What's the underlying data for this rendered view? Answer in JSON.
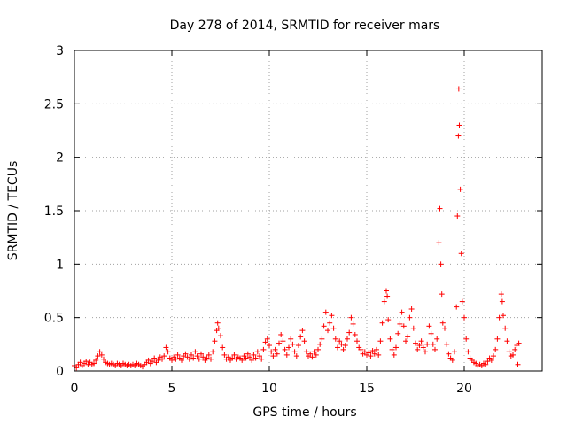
{
  "chart_data": {
    "type": "scatter",
    "title": "Day 278 of 2014, SRMTID for receiver mars",
    "xlabel": "GPS time / hours",
    "ylabel": "SRMTID / TECUs",
    "xlim": [
      0,
      24
    ],
    "ylim": [
      0,
      3
    ],
    "xticks": [
      0,
      5,
      10,
      15,
      20
    ],
    "xtick_labels": [
      "0",
      "5",
      "10",
      "15",
      "20"
    ],
    "yticks": [
      0,
      0.5,
      1,
      1.5,
      2,
      2.5,
      3
    ],
    "ytick_labels": [
      "0",
      "0.5",
      "1",
      "1.5",
      "2",
      "2.5",
      "3"
    ],
    "grid": true,
    "marker": "+",
    "color": "#ff0000",
    "series": [
      {
        "name": "SRMTID",
        "points": [
          [
            0.0,
            0.05
          ],
          [
            0.1,
            0.03
          ],
          [
            0.2,
            0.06
          ],
          [
            0.3,
            0.08
          ],
          [
            0.4,
            0.05
          ],
          [
            0.5,
            0.07
          ],
          [
            0.6,
            0.09
          ],
          [
            0.7,
            0.06
          ],
          [
            0.8,
            0.08
          ],
          [
            0.9,
            0.06
          ],
          [
            1.0,
            0.07
          ],
          [
            1.1,
            0.1
          ],
          [
            1.2,
            0.14
          ],
          [
            1.3,
            0.18
          ],
          [
            1.4,
            0.15
          ],
          [
            1.5,
            0.11
          ],
          [
            1.6,
            0.08
          ],
          [
            1.7,
            0.07
          ],
          [
            1.8,
            0.06
          ],
          [
            1.9,
            0.07
          ],
          [
            2.0,
            0.06
          ],
          [
            2.1,
            0.05
          ],
          [
            2.2,
            0.07
          ],
          [
            2.3,
            0.06
          ],
          [
            2.4,
            0.05
          ],
          [
            2.5,
            0.07
          ],
          [
            2.6,
            0.06
          ],
          [
            2.7,
            0.05
          ],
          [
            2.8,
            0.06
          ],
          [
            2.9,
            0.05
          ],
          [
            3.0,
            0.06
          ],
          [
            3.1,
            0.05
          ],
          [
            3.2,
            0.07
          ],
          [
            3.3,
            0.06
          ],
          [
            3.4,
            0.05
          ],
          [
            3.5,
            0.04
          ],
          [
            3.6,
            0.06
          ],
          [
            3.7,
            0.08
          ],
          [
            3.8,
            0.1
          ],
          [
            3.9,
            0.07
          ],
          [
            4.0,
            0.09
          ],
          [
            4.1,
            0.12
          ],
          [
            4.2,
            0.08
          ],
          [
            4.3,
            0.1
          ],
          [
            4.4,
            0.13
          ],
          [
            4.5,
            0.11
          ],
          [
            4.6,
            0.14
          ],
          [
            4.7,
            0.22
          ],
          [
            4.8,
            0.18
          ],
          [
            4.9,
            0.12
          ],
          [
            5.0,
            0.1
          ],
          [
            5.1,
            0.13
          ],
          [
            5.2,
            0.11
          ],
          [
            5.3,
            0.15
          ],
          [
            5.4,
            0.12
          ],
          [
            5.5,
            0.1
          ],
          [
            5.6,
            0.14
          ],
          [
            5.7,
            0.16
          ],
          [
            5.8,
            0.13
          ],
          [
            5.9,
            0.11
          ],
          [
            6.0,
            0.15
          ],
          [
            6.1,
            0.12
          ],
          [
            6.2,
            0.18
          ],
          [
            6.3,
            0.14
          ],
          [
            6.4,
            0.11
          ],
          [
            6.5,
            0.16
          ],
          [
            6.6,
            0.13
          ],
          [
            6.7,
            0.1
          ],
          [
            6.8,
            0.12
          ],
          [
            6.9,
            0.15
          ],
          [
            7.0,
            0.11
          ],
          [
            7.1,
            0.18
          ],
          [
            7.2,
            0.28
          ],
          [
            7.3,
            0.38
          ],
          [
            7.35,
            0.45
          ],
          [
            7.4,
            0.4
          ],
          [
            7.5,
            0.33
          ],
          [
            7.6,
            0.22
          ],
          [
            7.7,
            0.15
          ],
          [
            7.8,
            0.11
          ],
          [
            7.9,
            0.13
          ],
          [
            8.0,
            0.1
          ],
          [
            8.1,
            0.12
          ],
          [
            8.2,
            0.15
          ],
          [
            8.3,
            0.11
          ],
          [
            8.4,
            0.13
          ],
          [
            8.5,
            0.12
          ],
          [
            8.6,
            0.1
          ],
          [
            8.7,
            0.14
          ],
          [
            8.8,
            0.12
          ],
          [
            8.9,
            0.16
          ],
          [
            9.0,
            0.13
          ],
          [
            9.1,
            0.1
          ],
          [
            9.2,
            0.15
          ],
          [
            9.3,
            0.12
          ],
          [
            9.4,
            0.18
          ],
          [
            9.5,
            0.14
          ],
          [
            9.6,
            0.11
          ],
          [
            9.7,
            0.2
          ],
          [
            9.8,
            0.27
          ],
          [
            9.9,
            0.3
          ],
          [
            10.0,
            0.24
          ],
          [
            10.1,
            0.18
          ],
          [
            10.2,
            0.14
          ],
          [
            10.3,
            0.2
          ],
          [
            10.4,
            0.16
          ],
          [
            10.5,
            0.26
          ],
          [
            10.6,
            0.34
          ],
          [
            10.7,
            0.28
          ],
          [
            10.8,
            0.2
          ],
          [
            10.9,
            0.15
          ],
          [
            11.0,
            0.22
          ],
          [
            11.1,
            0.3
          ],
          [
            11.2,
            0.25
          ],
          [
            11.3,
            0.18
          ],
          [
            11.4,
            0.14
          ],
          [
            11.5,
            0.24
          ],
          [
            11.6,
            0.32
          ],
          [
            11.7,
            0.38
          ],
          [
            11.8,
            0.28
          ],
          [
            11.9,
            0.18
          ],
          [
            12.0,
            0.14
          ],
          [
            12.1,
            0.16
          ],
          [
            12.2,
            0.13
          ],
          [
            12.3,
            0.18
          ],
          [
            12.4,
            0.15
          ],
          [
            12.5,
            0.2
          ],
          [
            12.6,
            0.25
          ],
          [
            12.7,
            0.3
          ],
          [
            12.8,
            0.42
          ],
          [
            12.9,
            0.55
          ],
          [
            13.0,
            0.38
          ],
          [
            13.1,
            0.45
          ],
          [
            13.2,
            0.52
          ],
          [
            13.3,
            0.4
          ],
          [
            13.4,
            0.3
          ],
          [
            13.5,
            0.22
          ],
          [
            13.6,
            0.28
          ],
          [
            13.7,
            0.25
          ],
          [
            13.8,
            0.2
          ],
          [
            13.9,
            0.24
          ],
          [
            14.0,
            0.3
          ],
          [
            14.1,
            0.36
          ],
          [
            14.2,
            0.5
          ],
          [
            14.3,
            0.44
          ],
          [
            14.4,
            0.34
          ],
          [
            14.5,
            0.28
          ],
          [
            14.6,
            0.22
          ],
          [
            14.7,
            0.2
          ],
          [
            14.8,
            0.16
          ],
          [
            14.9,
            0.18
          ],
          [
            15.0,
            0.15
          ],
          [
            15.1,
            0.17
          ],
          [
            15.2,
            0.14
          ],
          [
            15.3,
            0.19
          ],
          [
            15.4,
            0.16
          ],
          [
            15.5,
            0.2
          ],
          [
            15.6,
            0.15
          ],
          [
            15.7,
            0.28
          ],
          [
            15.8,
            0.45
          ],
          [
            15.9,
            0.65
          ],
          [
            16.0,
            0.75
          ],
          [
            16.05,
            0.7
          ],
          [
            16.1,
            0.48
          ],
          [
            16.2,
            0.3
          ],
          [
            16.3,
            0.2
          ],
          [
            16.4,
            0.15
          ],
          [
            16.5,
            0.22
          ],
          [
            16.6,
            0.35
          ],
          [
            16.7,
            0.44
          ],
          [
            16.8,
            0.55
          ],
          [
            16.9,
            0.42
          ],
          [
            17.0,
            0.28
          ],
          [
            17.1,
            0.32
          ],
          [
            17.2,
            0.5
          ],
          [
            17.3,
            0.58
          ],
          [
            17.4,
            0.4
          ],
          [
            17.5,
            0.26
          ],
          [
            17.6,
            0.2
          ],
          [
            17.7,
            0.24
          ],
          [
            17.8,
            0.28
          ],
          [
            17.9,
            0.22
          ],
          [
            18.0,
            0.18
          ],
          [
            18.1,
            0.25
          ],
          [
            18.2,
            0.42
          ],
          [
            18.3,
            0.35
          ],
          [
            18.4,
            0.25
          ],
          [
            18.5,
            0.2
          ],
          [
            18.6,
            0.3
          ],
          [
            18.7,
            1.2
          ],
          [
            18.75,
            1.52
          ],
          [
            18.8,
            1.0
          ],
          [
            18.85,
            0.72
          ],
          [
            18.9,
            0.45
          ],
          [
            19.0,
            0.4
          ],
          [
            19.1,
            0.25
          ],
          [
            19.2,
            0.16
          ],
          [
            19.3,
            0.12
          ],
          [
            19.4,
            0.1
          ],
          [
            19.5,
            0.18
          ],
          [
            19.6,
            0.6
          ],
          [
            19.65,
            1.45
          ],
          [
            19.7,
            2.2
          ],
          [
            19.72,
            2.64
          ],
          [
            19.75,
            2.3
          ],
          [
            19.8,
            1.7
          ],
          [
            19.85,
            1.1
          ],
          [
            19.9,
            0.65
          ],
          [
            20.0,
            0.5
          ],
          [
            20.1,
            0.3
          ],
          [
            20.2,
            0.18
          ],
          [
            20.3,
            0.12
          ],
          [
            20.4,
            0.1
          ],
          [
            20.5,
            0.08
          ],
          [
            20.6,
            0.07
          ],
          [
            20.7,
            0.05
          ],
          [
            20.8,
            0.06
          ],
          [
            20.9,
            0.05
          ],
          [
            21.0,
            0.07
          ],
          [
            21.1,
            0.06
          ],
          [
            21.2,
            0.09
          ],
          [
            21.3,
            0.12
          ],
          [
            21.4,
            0.1
          ],
          [
            21.5,
            0.14
          ],
          [
            21.6,
            0.2
          ],
          [
            21.7,
            0.3
          ],
          [
            21.8,
            0.5
          ],
          [
            21.9,
            0.72
          ],
          [
            21.95,
            0.65
          ],
          [
            22.0,
            0.52
          ],
          [
            22.1,
            0.4
          ],
          [
            22.2,
            0.28
          ],
          [
            22.3,
            0.18
          ],
          [
            22.4,
            0.14
          ],
          [
            22.5,
            0.15
          ],
          [
            22.6,
            0.2
          ],
          [
            22.7,
            0.24
          ],
          [
            22.75,
            0.06
          ],
          [
            22.8,
            0.26
          ]
        ]
      }
    ]
  }
}
